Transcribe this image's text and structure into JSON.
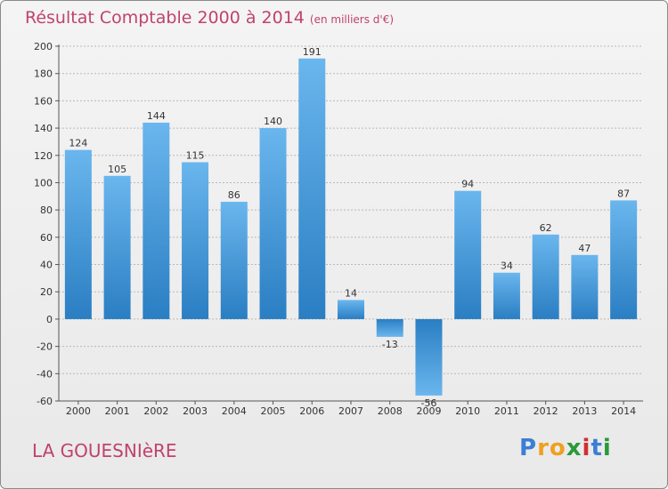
{
  "title": "Résultat Comptable 2000 à 2014",
  "subtitle": "(en milliers d'€)",
  "commune": "LA GOUESNIèRE",
  "logo": {
    "letters": [
      "P",
      "r",
      "o",
      "x",
      "i",
      "t",
      "i"
    ],
    "colors": [
      "#3a7fd5",
      "#f0a020",
      "#f0a020",
      "#2a9a3a",
      "#d03030",
      "#3a7fd5",
      "#2a9a3a"
    ]
  },
  "colors": {
    "bar_light": "#6ab6ee",
    "bar_dark": "#2a7ec2",
    "text_title": "#c0436a",
    "grid": "#b8b8b8"
  },
  "chart_data": {
    "type": "bar",
    "title": "Résultat Comptable 2000 à 2014",
    "xlabel": "",
    "ylabel": "",
    "ylim": [
      -60,
      200
    ],
    "yticks": [
      -60,
      -40,
      -20,
      0,
      20,
      40,
      60,
      80,
      100,
      120,
      140,
      160,
      180,
      200
    ],
    "grid": true,
    "categories": [
      "2000",
      "2001",
      "2002",
      "2003",
      "2004",
      "2005",
      "2006",
      "2007",
      "2008",
      "2009",
      "2010",
      "2011",
      "2012",
      "2013",
      "2014"
    ],
    "values": [
      124,
      105,
      144,
      115,
      86,
      140,
      191,
      14,
      -13,
      -56,
      94,
      34,
      62,
      47,
      87
    ],
    "labels": [
      "124",
      "105",
      "144",
      "115",
      "86",
      "140",
      "191",
      "14",
      "-13",
      "-56",
      "94",
      "34",
      "62",
      "47",
      "87"
    ]
  }
}
